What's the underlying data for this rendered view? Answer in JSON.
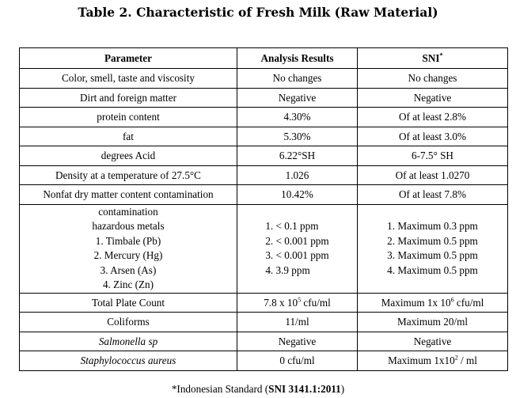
{
  "title": "Table 2. Characteristic of Fresh Milk (Raw Material)",
  "headers": {
    "parameter": "Parameter",
    "results": "Analysis Results",
    "sni": "SNI",
    "sni_mark": "*"
  },
  "rows": [
    {
      "parameter": "Color, smell, taste and viscosity",
      "result": "No changes",
      "sni": "No changes"
    },
    {
      "parameter": "Dirt and foreign matter",
      "result": "Negative",
      "sni": "Negative"
    },
    {
      "parameter": "protein content",
      "result": "4.30%",
      "sni": "Of at least 2.8%"
    },
    {
      "parameter": "fat",
      "result": "5.30%",
      "sni": "Of at least 3.0%"
    },
    {
      "parameter": "degrees Acid",
      "result": "6.22°SH",
      "sni": "6-7.5° SH"
    },
    {
      "parameter": "Density at a temperature of 27.5°C",
      "result": "1.026",
      "sni": "Of at least 1.0270"
    },
    {
      "parameter": "Nonfat dry matter content contamination",
      "result": "10.42%",
      "sni": "Of at least 7.8%"
    }
  ],
  "metals": {
    "parameter": [
      "contamination",
      "hazardous metals",
      "1. Timbale (Pb)",
      "2. Mercury (Hg)",
      "3. Arsen (As)",
      "4. Zinc (Zn)"
    ],
    "result": [
      "1. < 0.1 ppm",
      "2. < 0.001 ppm",
      "3. < 0.001 ppm",
      "4. 3.9 ppm"
    ],
    "sni": [
      "1. Maximum 0.3 ppm",
      "2. Maximum 0.5 ppm",
      "3. Maximum 0.5 ppm",
      "4. Maximum 0.5 ppm"
    ]
  },
  "tpc": {
    "parameter": "Total Plate Count",
    "result_base": "7.8 x 10",
    "result_exp": "5",
    "result_unit": " cfu/ml",
    "sni_base": "Maximum 1x 10",
    "sni_exp": "6",
    "sni_unit": " cfu/ml"
  },
  "coliforms": {
    "parameter": "Coliforms",
    "result": "11/ml",
    "sni": "Maximum 20/ml"
  },
  "salmonella": {
    "parameter": "Salmonella sp",
    "result": "Negative",
    "sni": "Negative"
  },
  "staph": {
    "parameter": "Staphylococcus aureus",
    "result": "0 cfu/ml",
    "sni_base": "Maximum 1x10",
    "sni_exp": "2",
    "sni_unit": " / ml"
  },
  "footnote": {
    "prefix": "*Indonesian Standard (",
    "code": "SNI 3141.1:2011",
    "suffix": ")"
  }
}
